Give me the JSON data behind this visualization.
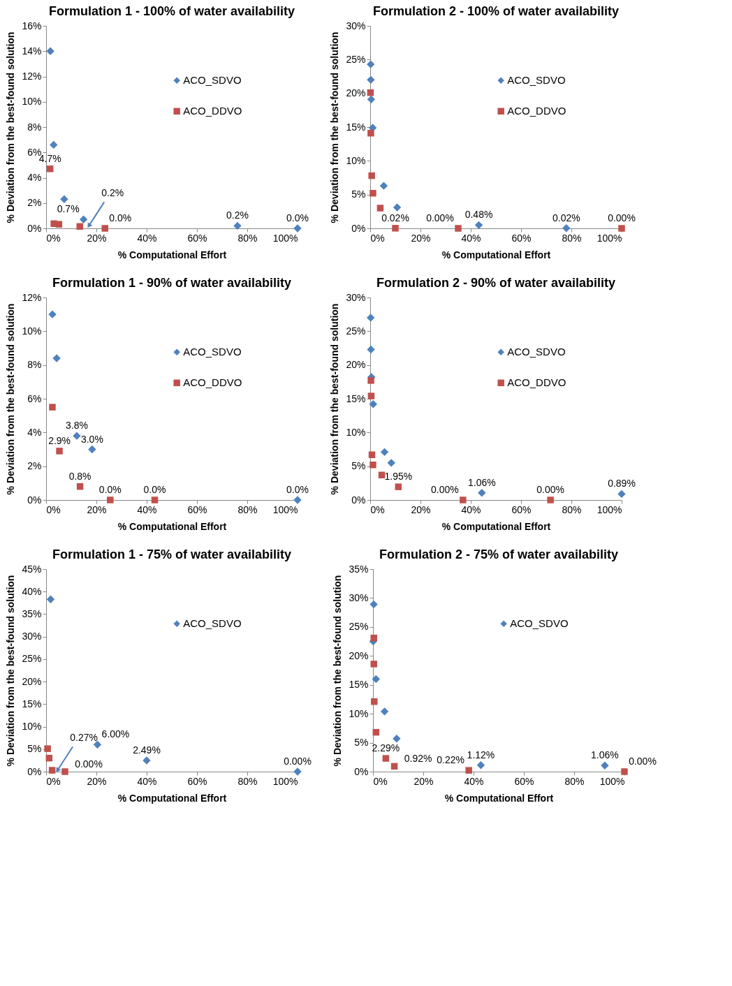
{
  "chart_data": [
    {
      "type": "scatter",
      "title": "Formulation 1 - 100% of water availability",
      "xlabel": "% Computational Effort",
      "ylabel": "% Deviation from the best-found solution",
      "legend": "top",
      "grid": false,
      "xlim": [
        0,
        100
      ],
      "xticks": [
        {
          "value": 0,
          "label": "0%"
        },
        {
          "value": 20,
          "label": "20%"
        },
        {
          "value": 40,
          "label": "40%"
        },
        {
          "value": 60,
          "label": "60%"
        },
        {
          "value": 80,
          "label": "80%"
        },
        {
          "value": 100,
          "label": "100%"
        }
      ],
      "ylim": [
        0,
        16
      ],
      "yticks": [
        {
          "value": 0,
          "label": "0%"
        },
        {
          "value": 2,
          "label": "2%"
        },
        {
          "value": 4,
          "label": "4%"
        },
        {
          "value": 6,
          "label": "6%"
        },
        {
          "value": 8,
          "label": "8%"
        },
        {
          "value": 10,
          "label": "10%"
        },
        {
          "value": 12,
          "label": "12%"
        },
        {
          "value": 14,
          "label": "14%"
        },
        {
          "value": 16,
          "label": "16%"
        }
      ],
      "annotations": [
        {
          "text": "0.2%",
          "x": 17,
          "y": 0.2
        }
      ],
      "series": [
        {
          "name": "ACO_SDVO",
          "color": "#4f81bd",
          "marker": "diamond",
          "x": [
            1.7,
            3.0,
            7.2,
            14.9,
            76.1,
            100
          ],
          "values": [
            14.0,
            6.6,
            2.3,
            0.7,
            0.2,
            0.0
          ],
          "value_labels": [
            null,
            null,
            null,
            "0.7%",
            "0.2%",
            "0.0%"
          ]
        },
        {
          "name": "ACO_DDVO",
          "color": "#c0504d",
          "marker": "square",
          "x": [
            1.6,
            3.1,
            5.1,
            13.4,
            23.4
          ],
          "values": [
            4.7,
            0.37,
            0.32,
            0.15,
            0.0
          ],
          "value_labels": [
            "4.7%",
            null,
            null,
            null,
            "0.0%"
          ]
        }
      ]
    },
    {
      "type": "scatter",
      "title": "Formulation 2 - 100% of water availability",
      "xlabel": "% Computational Effort",
      "ylabel": "% Deviation from the best-found solution",
      "legend": "top",
      "grid": false,
      "xlim": [
        0,
        100
      ],
      "xticks": [
        {
          "value": 0,
          "label": "0%"
        },
        {
          "value": 20,
          "label": "20%"
        },
        {
          "value": 40,
          "label": "40%"
        },
        {
          "value": 60,
          "label": "60%"
        },
        {
          "value": 80,
          "label": "80%"
        },
        {
          "value": 100,
          "label": "100%"
        }
      ],
      "ylim": [
        0,
        30
      ],
      "yticks": [
        {
          "value": 0,
          "label": "0%"
        },
        {
          "value": 5,
          "label": "5%"
        },
        {
          "value": 10,
          "label": "10%"
        },
        {
          "value": 15,
          "label": "15%"
        },
        {
          "value": 20,
          "label": "20%"
        },
        {
          "value": 25,
          "label": "25%"
        },
        {
          "value": 30,
          "label": "30%"
        }
      ],
      "series": [
        {
          "name": "ACO_SDVO",
          "color": "#4f81bd",
          "marker": "diamond",
          "x": [
            0.2,
            0.25,
            0.4,
            1.0,
            5.4,
            10.7,
            43.2,
            78.0
          ],
          "values": [
            24.3,
            22.0,
            19.1,
            14.9,
            6.3,
            3.1,
            0.48,
            0.02
          ],
          "value_labels": [
            null,
            null,
            null,
            null,
            null,
            null,
            "0.48%",
            "0.02%"
          ]
        },
        {
          "name": "ACO_DDVO",
          "color": "#c0504d",
          "marker": "square",
          "x": [
            0.1,
            0.25,
            0.6,
            1.1,
            4.0,
            10.0,
            35.0,
            100
          ],
          "values": [
            20.1,
            14.1,
            7.8,
            5.2,
            3.0,
            0.02,
            0.0,
            0.0
          ],
          "value_labels": [
            null,
            null,
            null,
            null,
            null,
            "0.02%",
            "0.00%",
            "0.00%"
          ]
        }
      ]
    },
    {
      "type": "scatter",
      "title": "Formulation 1 - 90% of water availability",
      "xlabel": "% Computational Effort",
      "ylabel": "% Deviation from the best-found solution",
      "legend": "top",
      "grid": false,
      "xlim": [
        0,
        100
      ],
      "xticks": [
        {
          "value": 0,
          "label": "0%"
        },
        {
          "value": 20,
          "label": "20%"
        },
        {
          "value": 40,
          "label": "40%"
        },
        {
          "value": 60,
          "label": "60%"
        },
        {
          "value": 80,
          "label": "80%"
        },
        {
          "value": 100,
          "label": "100%"
        }
      ],
      "ylim": [
        0,
        12
      ],
      "yticks": [
        {
          "value": 0,
          "label": "0%"
        },
        {
          "value": 2,
          "label": "2%"
        },
        {
          "value": 4,
          "label": "4%"
        },
        {
          "value": 6,
          "label": "6%"
        },
        {
          "value": 8,
          "label": "8%"
        },
        {
          "value": 10,
          "label": "10%"
        },
        {
          "value": 12,
          "label": "12%"
        }
      ],
      "series": [
        {
          "name": "ACO_SDVO",
          "color": "#4f81bd",
          "marker": "diamond",
          "x": [
            2.5,
            4.2,
            12.2,
            18.3,
            100
          ],
          "values": [
            11.0,
            8.4,
            3.8,
            3.0,
            0.0
          ],
          "value_labels": [
            null,
            null,
            "3.8%",
            "3.0%",
            "0.0%"
          ]
        },
        {
          "name": "ACO_DDVO",
          "color": "#c0504d",
          "marker": "square",
          "x": [
            2.5,
            5.3,
            13.5,
            25.5,
            43.2
          ],
          "values": [
            5.5,
            2.9,
            0.8,
            0.0,
            0.0
          ],
          "value_labels": [
            null,
            "2.9%",
            "0.8%",
            "0.0%",
            "0.0%"
          ]
        }
      ]
    },
    {
      "type": "scatter",
      "title": "Formulation 2 - 90% of water availability",
      "xlabel": "% Computational Effort",
      "ylabel": "% Deviation from the best-found solution",
      "legend": "top",
      "grid": false,
      "xlim": [
        0,
        100
      ],
      "xticks": [
        {
          "value": 0,
          "label": "0%"
        },
        {
          "value": 20,
          "label": "20%"
        },
        {
          "value": 40,
          "label": "40%"
        },
        {
          "value": 60,
          "label": "60%"
        },
        {
          "value": 80,
          "label": "80%"
        },
        {
          "value": 100,
          "label": "100%"
        }
      ],
      "ylim": [
        0,
        30
      ],
      "yticks": [
        {
          "value": 0,
          "label": "0%"
        },
        {
          "value": 5,
          "label": "5%"
        },
        {
          "value": 10,
          "label": "10%"
        },
        {
          "value": 15,
          "label": "15%"
        },
        {
          "value": 20,
          "label": "20%"
        },
        {
          "value": 25,
          "label": "25%"
        },
        {
          "value": 30,
          "label": "30%"
        }
      ],
      "series": [
        {
          "name": "ACO_SDVO",
          "color": "#4f81bd",
          "marker": "diamond",
          "x": [
            0.2,
            0.3,
            0.5,
            1.2,
            5.7,
            8.4,
            44.4,
            100
          ],
          "values": [
            27.0,
            22.3,
            18.2,
            14.2,
            7.1,
            5.5,
            1.06,
            0.89
          ],
          "value_labels": [
            null,
            null,
            null,
            null,
            null,
            null,
            "1.06%",
            "0.89%"
          ]
        },
        {
          "name": "ACO_DDVO",
          "color": "#c0504d",
          "marker": "square",
          "x": [
            0.3,
            0.4,
            0.7,
            1.1,
            4.6,
            11.2,
            36.9,
            71.7
          ],
          "values": [
            17.7,
            15.4,
            6.7,
            5.2,
            3.7,
            1.95,
            0.0,
            0.0
          ],
          "value_labels": [
            null,
            null,
            null,
            null,
            null,
            "1.95%",
            "0.00%",
            "0.00%"
          ]
        }
      ]
    },
    {
      "type": "scatter",
      "title": "Formulation 1 - 75% of water availability",
      "xlabel": "% Computational Effort",
      "ylabel": "% Deviation from the best-found solution",
      "legend": "top",
      "grid": false,
      "xlim": [
        0,
        100
      ],
      "xticks": [
        {
          "value": 0,
          "label": "0%"
        },
        {
          "value": 20,
          "label": "20%"
        },
        {
          "value": 40,
          "label": "40%"
        },
        {
          "value": 60,
          "label": "60%"
        },
        {
          "value": 80,
          "label": "80%"
        },
        {
          "value": 100,
          "label": "100%"
        }
      ],
      "ylim": [
        0,
        45
      ],
      "yticks": [
        {
          "value": 0,
          "label": "0%"
        },
        {
          "value": 5,
          "label": "5%"
        },
        {
          "value": 10,
          "label": "10%"
        },
        {
          "value": 15,
          "label": "15%"
        },
        {
          "value": 20,
          "label": "20%"
        },
        {
          "value": 25,
          "label": "25%"
        },
        {
          "value": 30,
          "label": "30%"
        },
        {
          "value": 35,
          "label": "35%"
        },
        {
          "value": 40,
          "label": "40%"
        },
        {
          "value": 45,
          "label": "45%"
        }
      ],
      "annotations": [
        {
          "text": "0.27%",
          "x": 4.5,
          "y": 0.27
        }
      ],
      "series": [
        {
          "name": "ACO_SDVO",
          "color": "#4f81bd",
          "marker": "diamond",
          "x": [
            1.8,
            20.4,
            40.0,
            100
          ],
          "values": [
            38.3,
            6.0,
            2.49,
            0.0
          ],
          "value_labels": [
            null,
            "6.00%",
            "2.49%",
            "0.00%"
          ]
        },
        {
          "color": "#c0504d",
          "marker": "square",
          "x": [
            0.6,
            1.2,
            2.4,
            7.5
          ],
          "values": [
            5.1,
            3.0,
            0.3,
            0.0
          ],
          "value_labels": [
            null,
            null,
            null,
            "0.00%"
          ]
        }
      ]
    },
    {
      "type": "scatter",
      "title": "Formulation 2 - 75% of water availability",
      "xlabel": "% Computational Effort",
      "ylabel": "% Deviation from the best-found solution",
      "legend": "top",
      "grid": false,
      "xlim": [
        0,
        100
      ],
      "xticks": [
        {
          "value": 0,
          "label": "0%"
        },
        {
          "value": 20,
          "label": "20%"
        },
        {
          "value": 40,
          "label": "40%"
        },
        {
          "value": 60,
          "label": "60%"
        },
        {
          "value": 80,
          "label": "80%"
        },
        {
          "value": 100,
          "label": "100%"
        }
      ],
      "ylim": [
        0,
        35
      ],
      "yticks": [
        {
          "value": 0,
          "label": "0%"
        },
        {
          "value": 5,
          "label": "5%"
        },
        {
          "value": 10,
          "label": "10%"
        },
        {
          "value": 15,
          "label": "15%"
        },
        {
          "value": 20,
          "label": "20%"
        },
        {
          "value": 25,
          "label": "25%"
        },
        {
          "value": 30,
          "label": "30%"
        },
        {
          "value": 35,
          "label": "35%"
        }
      ],
      "series": [
        {
          "name": "ACO_SDVO",
          "color": "#4f81bd",
          "marker": "diamond",
          "x": [
            0.3,
            0.1,
            1.2,
            4.6,
            9.4,
            42.9,
            92.2
          ],
          "values": [
            28.9,
            22.5,
            16.0,
            10.4,
            5.7,
            1.12,
            1.06
          ],
          "value_labels": [
            null,
            null,
            null,
            null,
            null,
            "1.12%",
            "1.06%"
          ]
        },
        {
          "color": "#c0504d",
          "marker": "square",
          "x": [
            0.35,
            0.35,
            0.5,
            1.2,
            5.1,
            8.5,
            38.1,
            100
          ],
          "values": [
            23.1,
            18.6,
            12.1,
            6.8,
            2.29,
            0.92,
            0.22,
            0.0
          ],
          "value_labels": [
            null,
            null,
            null,
            null,
            "2.29%",
            "0.92%",
            "0.22%",
            "0.00%"
          ]
        }
      ]
    }
  ]
}
